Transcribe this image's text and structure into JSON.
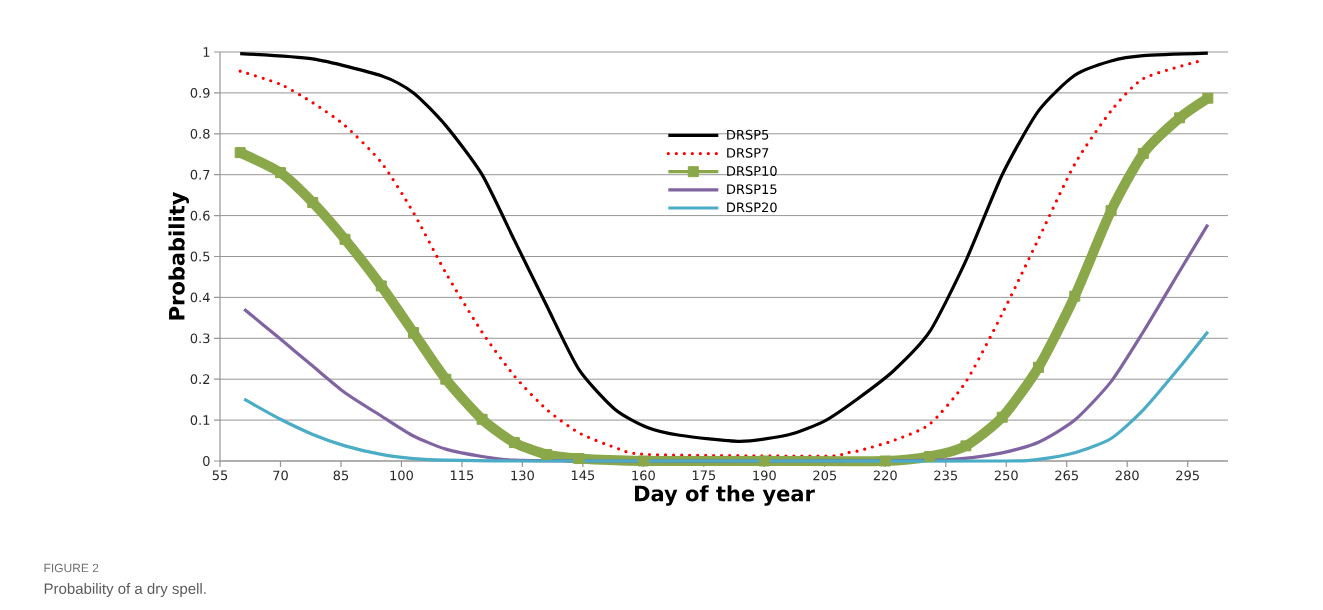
{
  "chart_data": {
    "type": "line",
    "title": "FIGURE 2",
    "subtitle": "Probability of a dry spell.",
    "xlabel": "Day of the year",
    "ylabel": "Probability",
    "xlim": [
      55,
      305
    ],
    "xticks": [
      55,
      70,
      85,
      100,
      115,
      130,
      145,
      160,
      175,
      190,
      205,
      220,
      235,
      250,
      265,
      280,
      295
    ],
    "ylim": [
      0,
      1
    ],
    "yticks": [
      0,
      0.1,
      0.2,
      0.3,
      0.4,
      0.5,
      0.6,
      0.7,
      0.8,
      0.9,
      1
    ],
    "grid": "y",
    "legend": "top",
    "series": [
      {
        "name": "DRSP5",
        "color": "#000000",
        "line_style": "solid",
        "x": [
          60,
          78,
          95,
          103,
          111,
          120,
          128,
          136,
          144,
          153,
          161,
          169,
          184,
          196,
          205,
          213,
          222,
          231,
          240,
          249,
          258,
          267,
          276,
          284,
          300
        ],
        "values": [
          0.996,
          0.983,
          0.942,
          0.9,
          0.82,
          0.7,
          0.54,
          0.38,
          0.224,
          0.126,
          0.082,
          0.063,
          0.048,
          0.064,
          0.098,
          0.151,
          0.22,
          0.316,
          0.49,
          0.7,
          0.856,
          0.943,
          0.978,
          0.991,
          0.997
        ]
      },
      {
        "name": "DRSP7",
        "color": "#ff0000",
        "line_style": "dotted",
        "x": [
          60,
          70,
          78,
          86,
          95,
          103,
          111,
          120,
          128,
          136,
          144,
          153,
          161,
          205,
          210,
          213,
          222,
          231,
          240,
          249,
          258,
          267,
          276,
          284,
          298
        ],
        "values": [
          0.953,
          0.921,
          0.876,
          0.82,
          0.73,
          0.607,
          0.46,
          0.315,
          0.208,
          0.126,
          0.069,
          0.033,
          0.016,
          0.012,
          0.02,
          0.024,
          0.05,
          0.09,
          0.194,
          0.36,
          0.543,
          0.726,
          0.856,
          0.935,
          0.978
        ]
      },
      {
        "name": "DRSP10",
        "color": "#8aa84a",
        "line_style": "solid",
        "marker": "square",
        "x": [
          60,
          70,
          78,
          86,
          95,
          103,
          111,
          120,
          128,
          136,
          144,
          160,
          190,
          220,
          231,
          240,
          249,
          258,
          267,
          276,
          284,
          293,
          300
        ],
        "values": [
          0.754,
          0.705,
          0.632,
          0.542,
          0.428,
          0.314,
          0.2,
          0.102,
          0.045,
          0.016,
          0.006,
          0.0,
          0.0,
          0.0,
          0.011,
          0.037,
          0.107,
          0.229,
          0.403,
          0.612,
          0.752,
          0.839,
          0.887
        ]
      },
      {
        "name": "DRSP15",
        "color": "#8064a2",
        "line_style": "solid",
        "x": [
          61,
          70,
          78,
          86,
          95,
          103,
          111,
          120,
          128,
          150,
          200,
          235,
          249,
          258,
          267,
          276,
          284,
          293,
          300
        ],
        "values": [
          0.371,
          0.298,
          0.232,
          0.167,
          0.11,
          0.061,
          0.029,
          0.011,
          0.002,
          0.0,
          0.0,
          0.003,
          0.02,
          0.046,
          0.1,
          0.194,
          0.316,
          0.464,
          0.578
        ]
      },
      {
        "name": "DRSP20",
        "color": "#4bacc6",
        "line_style": "solid",
        "x": [
          61,
          70,
          78,
          86,
          95,
          103,
          111,
          130,
          200,
          250,
          258,
          267,
          276,
          284,
          293,
          300
        ],
        "values": [
          0.151,
          0.102,
          0.065,
          0.037,
          0.016,
          0.006,
          0.002,
          0.0,
          0.0,
          0.0,
          0.004,
          0.02,
          0.055,
          0.125,
          0.229,
          0.316
        ]
      }
    ]
  }
}
